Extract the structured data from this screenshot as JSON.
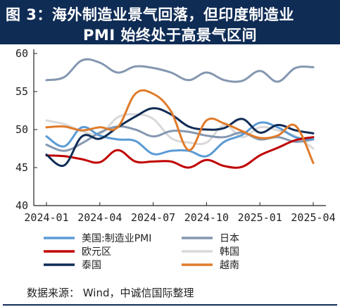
{
  "title": {
    "line1": "图 3：海外制造业景气回落，但印度制造业",
    "line2": "PMI 始终处于高景气区间"
  },
  "source": "数据来源： Wind，中诚信国际整理",
  "chart_data": {
    "type": "line",
    "x": [
      "2024-01",
      "2024-02",
      "2024-03",
      "2024-04",
      "2024-05",
      "2024-06",
      "2024-07",
      "2024-08",
      "2024-09",
      "2024-10",
      "2024-11",
      "2024-12",
      "2025-01",
      "2025-02",
      "2025-03",
      "2025-04"
    ],
    "x_tick_labels": [
      "2024-01",
      "2024-04",
      "2024-07",
      "2024-10",
      "2025-01",
      "2025-04"
    ],
    "ylim": [
      40,
      60
    ],
    "y_ticks": [
      40,
      45,
      50,
      55,
      60
    ],
    "grid": false,
    "legend_position": "bottom",
    "series": [
      {
        "name": "美国:制造业PMI",
        "color": "#5b9bd5",
        "values": [
          49.1,
          47.8,
          50.3,
          49.2,
          48.7,
          48.5,
          46.8,
          47.2,
          47.2,
          46.5,
          48.4,
          49.3,
          50.9,
          50.3,
          49.0,
          48.7
        ]
      },
      {
        "name": "日本",
        "color": "#8497b0",
        "values": [
          48.0,
          47.2,
          48.2,
          49.6,
          50.4,
          50.0,
          49.1,
          49.8,
          49.7,
          49.2,
          49.0,
          49.6,
          48.7,
          49.0,
          48.4,
          48.7
        ]
      },
      {
        "name": "欧元区",
        "color": "#c00000",
        "values": [
          46.6,
          46.5,
          46.1,
          45.7,
          47.3,
          45.8,
          45.8,
          45.8,
          45.0,
          46.0,
          45.2,
          45.1,
          46.6,
          47.6,
          48.6,
          49.0
        ]
      },
      {
        "name": "韩国",
        "color": "#d9d9d9",
        "values": [
          51.2,
          50.7,
          49.8,
          49.4,
          51.6,
          52.0,
          51.4,
          48.9,
          48.3,
          48.3,
          50.6,
          49.0,
          50.3,
          49.9,
          49.1,
          47.5
        ]
      },
      {
        "name": "泰国",
        "color": "#0f2c55",
        "values": [
          46.7,
          45.3,
          49.1,
          48.8,
          50.3,
          51.7,
          52.8,
          52.0,
          50.4,
          50.0,
          50.2,
          51.4,
          49.6,
          50.6,
          49.9,
          49.5
        ]
      },
      {
        "name": "越南",
        "color": "#e07b2a",
        "values": [
          50.3,
          50.4,
          49.9,
          50.3,
          50.3,
          54.7,
          54.7,
          52.4,
          47.3,
          51.2,
          50.8,
          49.8,
          48.9,
          49.2,
          50.5,
          45.6
        ]
      },
      {
        "name": "",
        "color": "#8497b0",
        "values": [
          56.5,
          56.9,
          59.1,
          58.8,
          57.5,
          58.3,
          58.1,
          57.5,
          56.5,
          57.5,
          56.5,
          56.4,
          57.7,
          56.3,
          58.1,
          58.2
        ]
      }
    ]
  }
}
